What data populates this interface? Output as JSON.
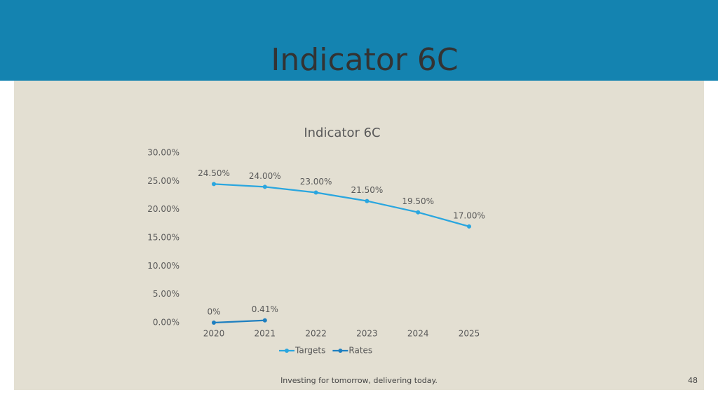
{
  "slide_title": "Indicator 6C",
  "footer": "Investing for tomorrow, delivering today.",
  "page_number": "48",
  "chart_data": {
    "type": "line",
    "title": "Indicator 6C",
    "categories": [
      "2020",
      "2021",
      "2022",
      "2023",
      "2024",
      "2025"
    ],
    "series": [
      {
        "name": "Targets",
        "color": "#2aa6df",
        "values": [
          24.5,
          24,
          23,
          21.5,
          19.5,
          17
        ],
        "value_labels": [
          "24.50%",
          "24.00%",
          "23.00%",
          "21.50%",
          "19.50%",
          "17.00%"
        ]
      },
      {
        "name": "Rates",
        "color": "#1e7fc0",
        "values": [
          0,
          0.41,
          null,
          null,
          null,
          null
        ],
        "value_labels": [
          "0%",
          "0.41%",
          null,
          null,
          null,
          null
        ]
      }
    ],
    "ylim": [
      0,
      30
    ],
    "yticks": [
      {
        "value": 0,
        "label": "0.00%"
      },
      {
        "value": 5,
        "label": "5.00%"
      },
      {
        "value": 10,
        "label": "10.00%"
      },
      {
        "value": 15,
        "label": "15.00%"
      },
      {
        "value": 20,
        "label": "20.00%"
      },
      {
        "value": 25,
        "label": "25.00%"
      },
      {
        "value": 30,
        "label": "30.00%"
      }
    ],
    "grid": false,
    "legend": "bottom"
  }
}
